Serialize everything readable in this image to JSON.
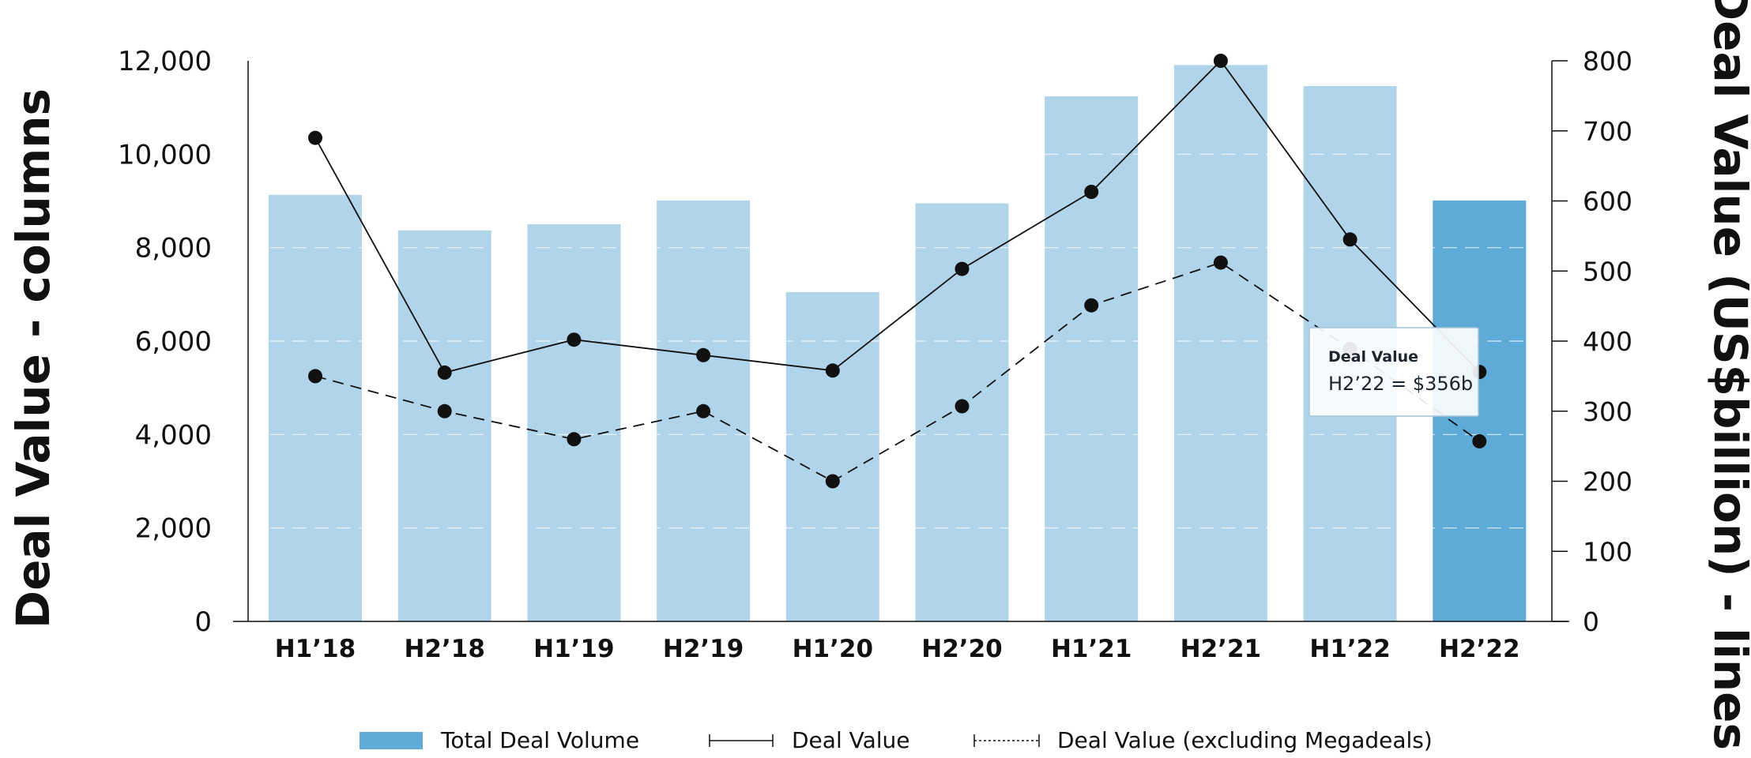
{
  "colors": {
    "bar": "#b0d5ea",
    "bar_highlight": "#5fabd8",
    "line": "#111111",
    "grid": "#ffffff"
  },
  "chart_data": {
    "type": "bar",
    "categories": [
      "H1’18",
      "H2’18",
      "H1’19",
      "H2’19",
      "H1’20",
      "H2’20",
      "H1’21",
      "H2’21",
      "H1’22",
      "H2’22"
    ],
    "series": [
      {
        "name": "Total Deal Volume",
        "type": "bar",
        "axis": "left",
        "values": [
          9130,
          8370,
          8500,
          9010,
          7050,
          8950,
          11240,
          11910,
          11460,
          9010
        ],
        "highlight_index": 9
      },
      {
        "name": "Deal Value",
        "type": "line",
        "axis": "right",
        "style": "solid",
        "values": [
          690,
          355,
          402,
          380,
          358,
          503,
          613,
          800,
          545,
          356
        ]
      },
      {
        "name": "Deal Value (excluding Megadeals)",
        "type": "line",
        "axis": "right",
        "style": "dashed",
        "values": [
          350,
          300,
          260,
          300,
          200,
          307,
          451,
          512,
          389,
          257
        ]
      }
    ],
    "ylabel": "Deal Value - columns",
    "y2label": "Deal Value (US$billion) - lines",
    "ylim": [
      0,
      12000
    ],
    "y2lim": [
      0,
      800
    ],
    "yticks": [
      "0",
      "2,000",
      "4,000",
      "6,000",
      "8,000",
      "10,000",
      "12,000"
    ],
    "y2ticks": [
      "0",
      "100",
      "200",
      "300",
      "400",
      "500",
      "600",
      "700",
      "800"
    ],
    "grid": true,
    "legend": {
      "position": "bottom",
      "items": [
        "Total Deal Volume",
        "Deal Value",
        "Deal Value (excluding Megadeals)"
      ]
    },
    "tooltip": {
      "title": "Deal Value",
      "text": "H2’22 = $356b",
      "anchor_index": 9
    }
  }
}
